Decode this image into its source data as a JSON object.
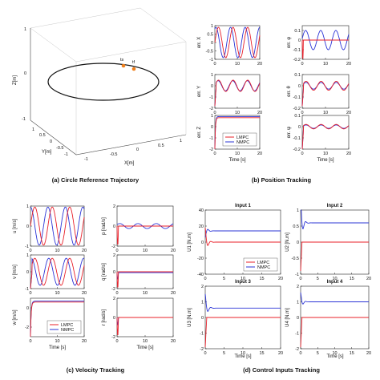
{
  "captions": {
    "a": "(a) Circle Reference Trajectory",
    "b": "(b) Position Tracking",
    "c": "(c) Velocity Tracking",
    "d": "(d) Control Inputs Tracking"
  },
  "legend": {
    "lmpc": "LMPC",
    "nmpc": "NMPC"
  },
  "colors": {
    "lmpc": "#e8202a",
    "nmpc": "#2b34d6",
    "reference": "#111111",
    "marker": "#f07f1a"
  },
  "chart_data": [
    {
      "id": "a",
      "type": "line",
      "title": "",
      "xlabel": "X[m]",
      "ylabel": "Y[m]",
      "zlabel": "Z[m]",
      "xticks": [
        "-1",
        "-0.5",
        "0",
        "0.5",
        "1"
      ],
      "yticks": [
        "1",
        "0.5",
        "0",
        "-0.5",
        "-1"
      ],
      "zticks": [
        "1",
        "0",
        "-1"
      ],
      "marker_labels": [
        "ts",
        "tf"
      ],
      "series": [
        {
          "name": "",
          "shape": "circle",
          "radius": 1,
          "z": 0
        }
      ]
    },
    {
      "id": "b",
      "type": "line",
      "xlabel": "Time [s]",
      "xlim": [
        0,
        20
      ],
      "xticks": [
        "0",
        "10",
        "20"
      ],
      "panels": [
        {
          "ylabel": "err. X",
          "ylim": [
            -1,
            1
          ],
          "yticks": [
            "1",
            "0.5",
            "0",
            "-0.5",
            "-1"
          ],
          "lmpc": {
            "kind": "osc",
            "a": 0.9,
            "d": 0.0,
            "p": 6.5
          },
          "nmpc": {
            "kind": "osc",
            "a": 0.9,
            "d": 0.35,
            "p": 6.5
          }
        },
        {
          "ylabel": "err. φ",
          "ylim": [
            -0.2,
            0.15
          ],
          "yticks": [
            "0.1",
            "0",
            "-0.1",
            "-0.2"
          ],
          "lmpc": {
            "kind": "spike",
            "amp": -0.2
          },
          "nmpc": {
            "kind": "osc",
            "a": 0.1,
            "d": 0.05,
            "p": 6.5
          }
        },
        {
          "ylabel": "err. Y",
          "ylim": [
            -2,
            1
          ],
          "yticks": [
            "1",
            "0",
            "-1",
            "-2"
          ],
          "lmpc": {
            "kind": "oscb",
            "a": 0.5,
            "d": 0.0,
            "p": 6.5,
            "o": 0.0,
            "s": -1.8
          },
          "nmpc": {
            "kind": "oscb",
            "a": 0.45,
            "d": 0.05,
            "p": 6.5,
            "o": 0.0,
            "s": -1.8
          }
        },
        {
          "ylabel": "err. θ",
          "ylim": [
            -0.2,
            0.1
          ],
          "yticks": [
            "0.1",
            "0",
            "-0.1",
            "-0.2"
          ],
          "lmpc": {
            "kind": "oscb",
            "a": 0.04,
            "d": 0.0,
            "p": 6.5,
            "o": 0.0,
            "s": -0.18
          },
          "nmpc": {
            "kind": "oscb",
            "a": 0.03,
            "d": 0.0,
            "p": 6.5,
            "o": 0.0,
            "s": -0.18
          }
        },
        {
          "ylabel": "err. Z",
          "ylim": [
            -2,
            1
          ],
          "yticks": [
            "1",
            "0",
            "-1",
            "-2"
          ],
          "lmpc": {
            "kind": "step",
            "from": -2,
            "to": 0.8
          },
          "nmpc": {
            "kind": "step",
            "from": -2,
            "to": 0.9
          },
          "legend": true
        },
        {
          "ylabel": "err. ψ",
          "ylim": [
            -0.2,
            0.1
          ],
          "yticks": [
            "0.1",
            "0",
            "-0.1",
            "-0.2"
          ],
          "lmpc": {
            "kind": "oscb",
            "a": 0.02,
            "d": 0.0,
            "p": 6.5,
            "o": 0.0,
            "s": -0.2
          },
          "nmpc": {
            "kind": "oscb",
            "a": 0.015,
            "d": 0.0,
            "p": 6.5,
            "o": 0.0,
            "s": -0.2
          }
        }
      ]
    },
    {
      "id": "c",
      "type": "line",
      "xlabel": "Time [s]",
      "xlim": [
        0,
        20
      ],
      "xticks": [
        "0",
        "10",
        "20"
      ],
      "panels": [
        {
          "ylabel": "u [m/s]",
          "ylim": [
            -1,
            1
          ],
          "yticks": [
            "1",
            "0",
            "-1"
          ],
          "lmpc": {
            "kind": "osc",
            "a": 0.95,
            "d": 0.0,
            "p": 6.5
          },
          "nmpc": {
            "kind": "osc",
            "a": 0.95,
            "d": 0.5,
            "p": 6.5
          }
        },
        {
          "ylabel": "p [rad/s]",
          "ylim": [
            -2,
            2
          ],
          "yticks": [
            "2",
            "0",
            "-2"
          ],
          "lmpc": {
            "kind": "spike",
            "amp": -1.9
          },
          "nmpc": {
            "kind": "osc",
            "a": 0.25,
            "d": 0.2,
            "p": 6.5
          }
        },
        {
          "ylabel": "v [m/s]",
          "ylim": [
            -1,
            1
          ],
          "yticks": [
            "1",
            "0",
            "-1"
          ],
          "lmpc": {
            "kind": "oscb",
            "a": 0.8,
            "d": 0.0,
            "p": 6.5,
            "o": 0.0,
            "s": -1
          },
          "nmpc": {
            "kind": "oscb",
            "a": 0.8,
            "d": 0.4,
            "p": 6.5,
            "o": 0.0,
            "s": -1
          }
        },
        {
          "ylabel": "q [rad/s]",
          "ylim": [
            -2,
            2
          ],
          "yticks": [
            "2",
            "0",
            "-2"
          ],
          "lmpc": {
            "kind": "spike",
            "amp": -1.9
          },
          "nmpc": {
            "kind": "flat",
            "v": -0.1
          }
        },
        {
          "ylabel": "w [m/s]",
          "ylim": [
            -3,
            1
          ],
          "yticks": [
            "0",
            "-2"
          ],
          "lmpc": {
            "kind": "step",
            "from": -3,
            "to": 0.6
          },
          "nmpc": {
            "kind": "step",
            "from": -3,
            "to": 0.7
          },
          "legend": true
        },
        {
          "ylabel": "r [rad/s]",
          "ylim": [
            -2,
            2
          ],
          "yticks": [
            "2",
            "0",
            "-2"
          ],
          "lmpc": {
            "kind": "spike",
            "amp": -1.9
          },
          "nmpc": {
            "kind": "flat",
            "v": 0.0
          }
        }
      ]
    },
    {
      "id": "d",
      "type": "line",
      "xlabel": "Time [s]",
      "xlim": [
        0,
        20
      ],
      "xticks": [
        "0",
        "5",
        "10",
        "15",
        "20"
      ],
      "panels": [
        {
          "title": "Input 1",
          "ylabel": "U1 [N.m]",
          "ylim": [
            -40,
            40
          ],
          "yticks": [
            "40",
            "20",
            "0",
            "-20",
            "-40"
          ],
          "lmpc": {
            "kind": "settle",
            "v": 0,
            "p": 18
          },
          "nmpc": {
            "kind": "settle",
            "v": 14,
            "p": -8
          },
          "legend": true
        },
        {
          "title": "Input 2",
          "ylabel": "U2 [N.m]",
          "ylim": [
            -1,
            1
          ],
          "yticks": [
            "1",
            "0.5",
            "0",
            "-0.5",
            "-1"
          ],
          "lmpc": {
            "kind": "spikeflat",
            "v": 0,
            "amp": -0.9
          },
          "nmpc": {
            "kind": "settle",
            "v": 0.6,
            "p": 0.8
          }
        },
        {
          "title": "Input 3",
          "ylabel": "U3 [N.m]",
          "ylim": [
            -2,
            2
          ],
          "yticks": [
            "2",
            "1",
            "0",
            "-1",
            "-2"
          ],
          "lmpc": {
            "kind": "spikeflat",
            "v": 0,
            "amp": -1.9
          },
          "nmpc": {
            "kind": "settle",
            "v": 0.6,
            "p": 0.9
          }
        },
        {
          "title": "Input 4",
          "ylabel": "U4 [N.m]",
          "ylim": [
            -2,
            2
          ],
          "yticks": [
            "2",
            "1",
            "0",
            "-1",
            "-2"
          ],
          "lmpc": {
            "kind": "spikeflat",
            "v": 0,
            "amp": -1.9
          },
          "nmpc": {
            "kind": "settle",
            "v": 1.0,
            "p": 0.6
          }
        }
      ]
    }
  ]
}
